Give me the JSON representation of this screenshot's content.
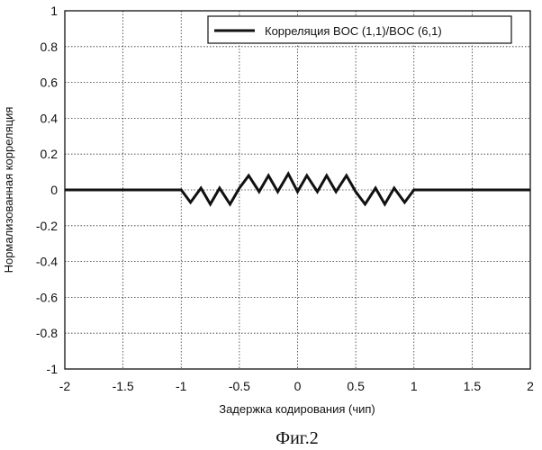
{
  "chart_data": {
    "type": "line",
    "xlabel": "Задержка кодирования (чип)",
    "ylabel": "Нормализованная корреляция",
    "xlim": [
      -2,
      2
    ],
    "ylim": [
      -1,
      1
    ],
    "x_ticks": [
      "-2",
      "-1.5",
      "-1",
      "-0.5",
      "0",
      "0.5",
      "1",
      "1.5",
      "2"
    ],
    "y_ticks": [
      "1",
      "0.8",
      "0.6",
      "0.4",
      "0.2",
      "0",
      "-0.2",
      "-0.4",
      "-0.6",
      "-0.8",
      "-1"
    ],
    "grid": true,
    "legend_position": "top-right",
    "series": [
      {
        "name": "Корреляция BOC (1,1)/BOC (6,1)",
        "color": "#111111",
        "x": [
          -2,
          -1,
          -0.92,
          -0.83,
          -0.75,
          -0.67,
          -0.58,
          -0.5,
          -0.42,
          -0.33,
          -0.25,
          -0.17,
          -0.08,
          0,
          0.08,
          0.17,
          0.25,
          0.33,
          0.42,
          0.5,
          0.58,
          0.67,
          0.75,
          0.83,
          0.92,
          1,
          2
        ],
        "y": [
          0,
          0,
          -0.07,
          0.01,
          -0.08,
          0.01,
          -0.08,
          0.01,
          0.08,
          -0.01,
          0.08,
          -0.01,
          0.09,
          -0.01,
          0.08,
          -0.01,
          0.08,
          -0.01,
          0.08,
          -0.01,
          -0.08,
          0.01,
          -0.08,
          0.01,
          -0.07,
          0,
          0
        ]
      }
    ],
    "caption": "Фиг.2"
  }
}
